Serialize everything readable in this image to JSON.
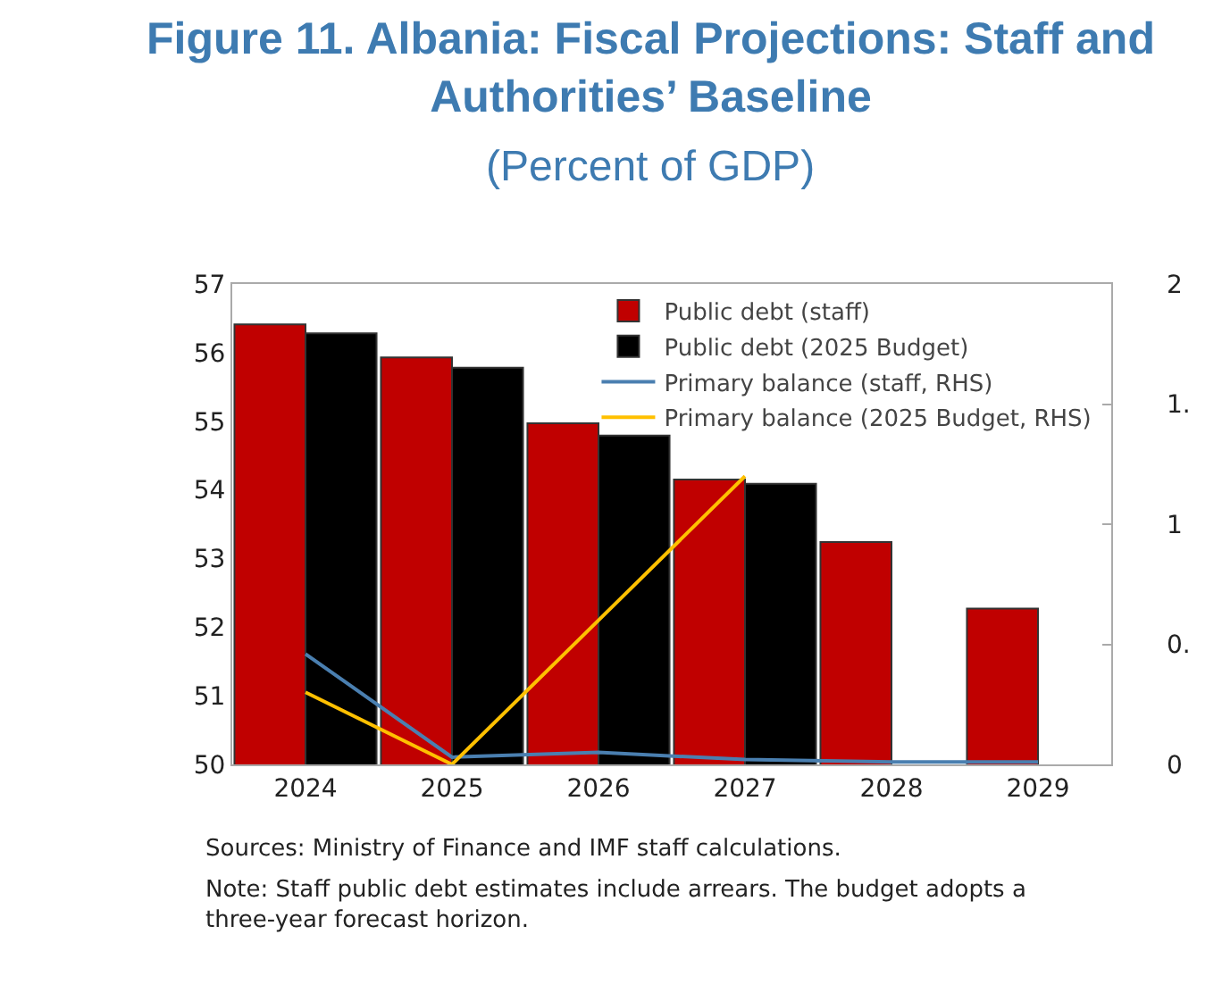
{
  "chart_data": {
    "type": "bar",
    "title": "Figure 11. Albania: Fiscal Projections: Staff and Authorities’ Baseline",
    "subtitle": "(Percent of GDP)",
    "categories": [
      "2024",
      "2025",
      "2026",
      "2027",
      "2028",
      "2029"
    ],
    "series": [
      {
        "name": "Public debt (staff)",
        "color": "#c00000",
        "values": [
          56.41,
          55.93,
          54.97,
          54.15,
          53.24,
          52.27
        ]
      },
      {
        "name": "Public debt (2025 Budget)",
        "color": "#000000",
        "values": [
          56.28,
          55.78,
          54.79,
          54.09,
          null,
          null
        ]
      },
      {
        "name": "Primary balance (staff, RHS)",
        "type": "line",
        "axis": "y2",
        "color": "#4a7fb0",
        "values": [
          0.46,
          0.03,
          0.05,
          0.02,
          0.01,
          0.01
        ]
      },
      {
        "name": "Primary balance (2025 Budget, RHS)",
        "type": "line",
        "axis": "y2",
        "color": "#ffc000",
        "values": [
          0.3,
          0.0,
          0.6,
          1.2,
          null,
          null
        ]
      }
    ],
    "ylim": [
      50,
      57
    ],
    "yticks": [
      50,
      51,
      52,
      53,
      54,
      55,
      56,
      57
    ],
    "y2lim": [
      0,
      2
    ],
    "y2ticks": [
      0,
      {
        "value": 0.5,
        "label": "0."
      },
      1,
      {
        "value": 1.5,
        "label": "1."
      },
      2
    ],
    "legend": "top right",
    "annotations": [
      "Sources: Ministry of Finance and IMF staff calculations.",
      "Note: Staff public debt estimates include arrears. The budget adopts a three-year forecast horizon."
    ]
  }
}
